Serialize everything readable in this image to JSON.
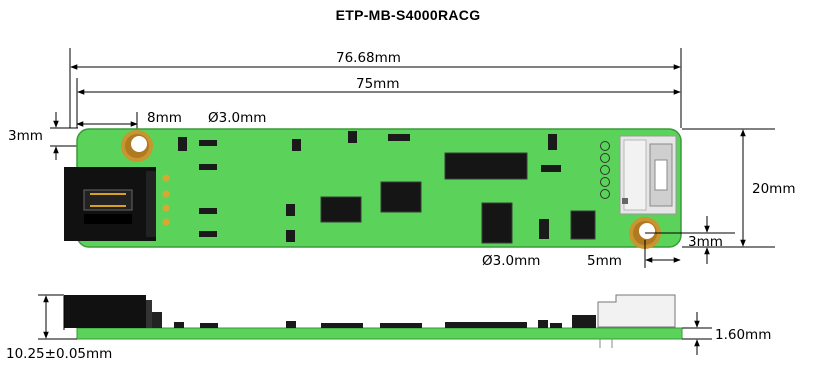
{
  "title": "ETP-MB-S4000RACG",
  "colors": {
    "pcb_green": "#5bd35b",
    "pcb_edge": "#3a9a3a",
    "chip": "#1a1a1a",
    "hole_ring": "#c8952f",
    "hole_center": "#ffffff",
    "connector": "#111111",
    "usb_port": "#d8d8d8"
  },
  "dimensions": {
    "overall_length": "76.68mm",
    "board_length": "75mm",
    "hole_offset_x": "8mm",
    "hole_diameter_top": "Ø3.0mm",
    "hole_offset_y_top": "3mm",
    "board_width": "20mm",
    "hole_offset_y_bottom": "3mm",
    "hole_diameter_bottom": "Ø3.0mm",
    "hole_offset_x_bottom": "5mm",
    "board_thickness": "1.60mm",
    "connector_height": "10.25±0.05mm"
  }
}
